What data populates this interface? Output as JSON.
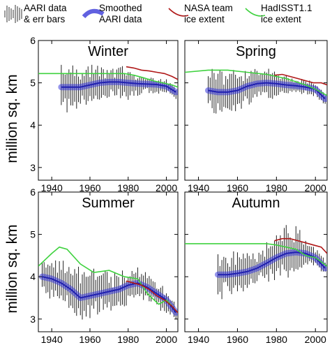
{
  "legend": [
    {
      "label_lines": [
        "AARI data",
        "& err bars"
      ],
      "color": "#333333",
      "kind": "errbars"
    },
    {
      "label_lines": [
        "Smoothed",
        "AARI data"
      ],
      "color": "#3a3ad8",
      "kind": "band"
    },
    {
      "label_lines": [
        "NASA team",
        "ice extent"
      ],
      "color": "#b01818",
      "kind": "line"
    },
    {
      "label_lines": [
        "HadISST1.1",
        "ice extent"
      ],
      "color": "#3fd23f",
      "kind": "line"
    }
  ],
  "ylabel": "million sq. km",
  "yticks": [
    "3",
    "4",
    "5",
    "6"
  ],
  "xticks": [
    "1940",
    "1960",
    "1980",
    "2000"
  ],
  "chart_data": [
    {
      "type": "line",
      "title": "Winter",
      "xlim": [
        1933,
        2006
      ],
      "ylim": [
        2.7,
        6.0
      ],
      "series": [
        {
          "name": "AARI data & err bars",
          "x": [
            1945,
            1955,
            1965,
            1975,
            1985,
            1990,
            1995,
            2000,
            2005
          ],
          "y": [
            4.85,
            4.9,
            4.95,
            5.0,
            4.95,
            4.95,
            4.95,
            4.9,
            4.75
          ],
          "err": [
            0.4,
            0.4,
            0.35,
            0.35,
            0.2,
            0.15,
            0.15,
            0.15,
            0.1
          ]
        },
        {
          "name": "Smoothed AARI data",
          "x": [
            1945,
            1950,
            1955,
            1960,
            1965,
            1970,
            1975,
            1980,
            1985,
            1990,
            1995,
            2000,
            2005
          ],
          "y": [
            4.9,
            4.9,
            4.9,
            4.95,
            5.0,
            5.02,
            5.02,
            5.0,
            4.98,
            4.97,
            4.96,
            4.92,
            4.78
          ]
        },
        {
          "name": "NASA team ice extent",
          "x": [
            1979,
            1983,
            1987,
            1991,
            1995,
            1999,
            2003,
            2006
          ],
          "y": [
            5.38,
            5.35,
            5.3,
            5.28,
            5.25,
            5.22,
            5.15,
            5.08
          ]
        },
        {
          "name": "HadISST1.1 ice extent",
          "x": [
            1933,
            1960,
            1978,
            1983,
            1988,
            1993,
            1998,
            2003,
            2006
          ],
          "y": [
            5.22,
            5.22,
            5.22,
            5.18,
            5.12,
            5.05,
            5.0,
            4.95,
            4.9
          ]
        }
      ]
    },
    {
      "type": "line",
      "title": "Spring",
      "xlim": [
        1933,
        2006
      ],
      "ylim": [
        2.7,
        6.0
      ],
      "series": [
        {
          "name": "AARI data & err bars",
          "x": [
            1945,
            1955,
            1965,
            1975,
            1985,
            1990,
            1995,
            2000,
            2005
          ],
          "y": [
            4.8,
            4.75,
            4.9,
            5.0,
            4.95,
            4.92,
            4.9,
            4.85,
            4.6
          ],
          "err": [
            0.4,
            0.4,
            0.35,
            0.3,
            0.2,
            0.15,
            0.15,
            0.15,
            0.1
          ]
        },
        {
          "name": "Smoothed AARI data",
          "x": [
            1945,
            1950,
            1955,
            1960,
            1965,
            1970,
            1975,
            1980,
            1985,
            1990,
            1995,
            2000,
            2005
          ],
          "y": [
            4.82,
            4.78,
            4.78,
            4.82,
            4.92,
            4.98,
            5.0,
            4.98,
            4.95,
            4.93,
            4.9,
            4.85,
            4.62
          ]
        },
        {
          "name": "NASA team ice extent",
          "x": [
            1979,
            1983,
            1987,
            1991,
            1995,
            1999,
            2003,
            2006
          ],
          "y": [
            5.18,
            5.2,
            5.15,
            5.1,
            5.05,
            5.0,
            5.0,
            4.95
          ]
        },
        {
          "name": "HadISST1.1 ice extent",
          "x": [
            1933,
            1945,
            1955,
            1965,
            1975,
            1985,
            1995,
            2000,
            2006
          ],
          "y": [
            5.25,
            5.3,
            5.3,
            5.25,
            5.2,
            5.1,
            4.95,
            4.85,
            4.7
          ]
        }
      ]
    },
    {
      "type": "line",
      "title": "Summer",
      "xlim": [
        1933,
        2006
      ],
      "ylim": [
        2.7,
        6.0
      ],
      "series": [
        {
          "name": "AARI data & err bars",
          "x": [
            1935,
            1945,
            1955,
            1965,
            1975,
            1985,
            1990,
            1995,
            2000,
            2005
          ],
          "y": [
            4.0,
            3.9,
            3.6,
            3.65,
            3.6,
            3.85,
            3.75,
            3.6,
            3.4,
            3.15
          ],
          "err": [
            0.3,
            0.4,
            0.45,
            0.4,
            0.35,
            0.3,
            0.25,
            0.25,
            0.2,
            0.15
          ]
        },
        {
          "name": "Smoothed AARI data",
          "x": [
            1935,
            1940,
            1945,
            1950,
            1955,
            1960,
            1965,
            1970,
            1975,
            1980,
            1985,
            1990,
            1995,
            2000,
            2005
          ],
          "y": [
            4.0,
            3.95,
            3.85,
            3.7,
            3.5,
            3.55,
            3.6,
            3.65,
            3.7,
            3.8,
            3.85,
            3.75,
            3.6,
            3.45,
            3.15
          ]
        },
        {
          "name": "NASA team ice extent",
          "x": [
            1979,
            1983,
            1987,
            1991,
            1995,
            1999,
            2003,
            2006
          ],
          "y": [
            3.9,
            3.85,
            3.8,
            3.7,
            3.55,
            3.45,
            3.3,
            3.15
          ]
        },
        {
          "name": "HadISST1.1 ice extent",
          "x": [
            1933,
            1940,
            1944,
            1948,
            1955,
            1962,
            1970,
            1978,
            1985,
            1990,
            1996,
            2000,
            2006
          ],
          "y": [
            4.25,
            4.55,
            4.7,
            4.65,
            4.3,
            4.1,
            4.15,
            4.0,
            3.95,
            3.6,
            3.35,
            3.45,
            3.15
          ]
        }
      ]
    },
    {
      "type": "line",
      "title": "Autumn",
      "xlim": [
        1933,
        2006
      ],
      "ylim": [
        2.7,
        6.0
      ],
      "series": [
        {
          "name": "AARI data & err bars",
          "x": [
            1950,
            1955,
            1960,
            1965,
            1970,
            1975,
            1980,
            1985,
            1990,
            1995,
            2000,
            2005
          ],
          "y": [
            4.05,
            4.05,
            4.1,
            4.15,
            4.2,
            4.35,
            4.5,
            4.6,
            4.6,
            4.55,
            4.45,
            4.25
          ],
          "err": [
            0.4,
            0.4,
            0.4,
            0.4,
            0.35,
            0.35,
            0.4,
            0.5,
            0.45,
            0.25,
            0.2,
            0.15
          ]
        },
        {
          "name": "Smoothed AARI data",
          "x": [
            1950,
            1955,
            1960,
            1965,
            1970,
            1975,
            1980,
            1985,
            1990,
            1995,
            2000,
            2005
          ],
          "y": [
            4.05,
            4.05,
            4.08,
            4.12,
            4.2,
            4.32,
            4.45,
            4.55,
            4.58,
            4.55,
            4.45,
            4.2
          ]
        },
        {
          "name": "NASA team ice extent",
          "x": [
            1979,
            1983,
            1987,
            1991,
            1995,
            1999,
            2003,
            2006
          ],
          "y": [
            4.85,
            4.9,
            4.9,
            4.85,
            4.8,
            4.75,
            4.7,
            4.55
          ]
        },
        {
          "name": "HadISST1.1 ice extent",
          "x": [
            1933,
            1950,
            1965,
            1975,
            1980,
            1985,
            1990,
            1995,
            2000,
            2006
          ],
          "y": [
            4.78,
            4.78,
            4.78,
            4.78,
            4.75,
            4.7,
            4.65,
            4.5,
            4.45,
            4.25
          ]
        }
      ]
    }
  ]
}
